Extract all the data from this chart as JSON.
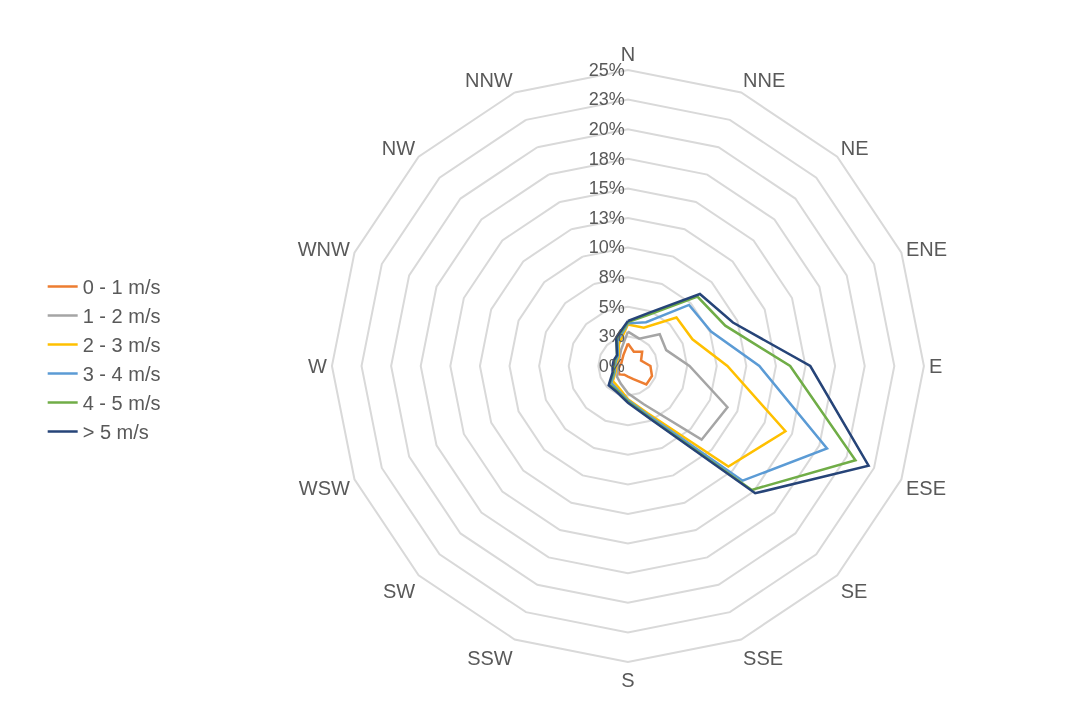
{
  "chart_data": {
    "type": "radar",
    "categories": [
      "N",
      "NNE",
      "NE",
      "ENE",
      "E",
      "ESE",
      "SE",
      "SSE",
      "S",
      "SSW",
      "SW",
      "WSW",
      "W",
      "WNW",
      "NW",
      "NNW"
    ],
    "series": [
      {
        "name": "0 - 1 m/s",
        "color": "#ed7d31",
        "values": [
          1.9,
          1.3,
          1.7,
          1.2,
          1.9,
          2.2,
          2.2,
          1.2,
          0.9,
          0.8,
          1.0,
          0.9,
          0.7,
          0.6,
          0.7,
          1.0
        ]
      },
      {
        "name": "1 - 2 m/s",
        "color": "#a5a5a5",
        "values": [
          2.9,
          2.5,
          3.8,
          3.5,
          5.2,
          9.1,
          8.8,
          3.5,
          2.3,
          1.6,
          1.3,
          0.9,
          0.8,
          0.9,
          1.0,
          1.5
        ]
      },
      {
        "name": "2 - 3 m/s",
        "color": "#ffc000",
        "values": [
          3.5,
          3.5,
          5.8,
          5.9,
          8.4,
          14.4,
          12.0,
          4.3,
          2.8,
          2.0,
          1.8,
          1.1,
          1.0,
          1.0,
          1.1,
          2.0
        ]
      },
      {
        "name": "3 - 4 m/s",
        "color": "#5b9bd5",
        "values": [
          3.6,
          4.0,
          7.3,
          7.6,
          11.1,
          18.2,
          13.7,
          4.5,
          2.9,
          2.2,
          2.0,
          1.2,
          1.1,
          1.1,
          1.2,
          2.3
        ]
      },
      {
        "name": "4 - 5 m/s",
        "color": "#70ad47",
        "values": [
          3.7,
          4.7,
          8.3,
          8.9,
          13.7,
          20.8,
          14.8,
          4.7,
          3.0,
          2.3,
          2.2,
          1.3,
          1.2,
          1.2,
          1.3,
          2.5
        ]
      },
      {
        "name": "> 5 m/s",
        "color": "#264478",
        "values": [
          3.8,
          4.9,
          8.6,
          9.6,
          15.4,
          22.0,
          15.2,
          4.8,
          3.1,
          2.4,
          2.3,
          1.4,
          1.3,
          1.3,
          1.3,
          2.6
        ]
      }
    ],
    "ylim": [
      0,
      25
    ],
    "yticks": [
      {
        "value": 0,
        "label": "0%"
      },
      {
        "value": 2.5,
        "label": "3%"
      },
      {
        "value": 5,
        "label": "5%"
      },
      {
        "value": 7.5,
        "label": "8%"
      },
      {
        "value": 10,
        "label": "10%"
      },
      {
        "value": 12.5,
        "label": "13%"
      },
      {
        "value": 15,
        "label": "15%"
      },
      {
        "value": 17.5,
        "label": "18%"
      },
      {
        "value": 20,
        "label": "20%"
      },
      {
        "value": 22.5,
        "label": "23%"
      },
      {
        "value": 25,
        "label": "25%"
      }
    ],
    "grid": true,
    "legend": "left",
    "line_style": "solid",
    "marker": "none"
  }
}
